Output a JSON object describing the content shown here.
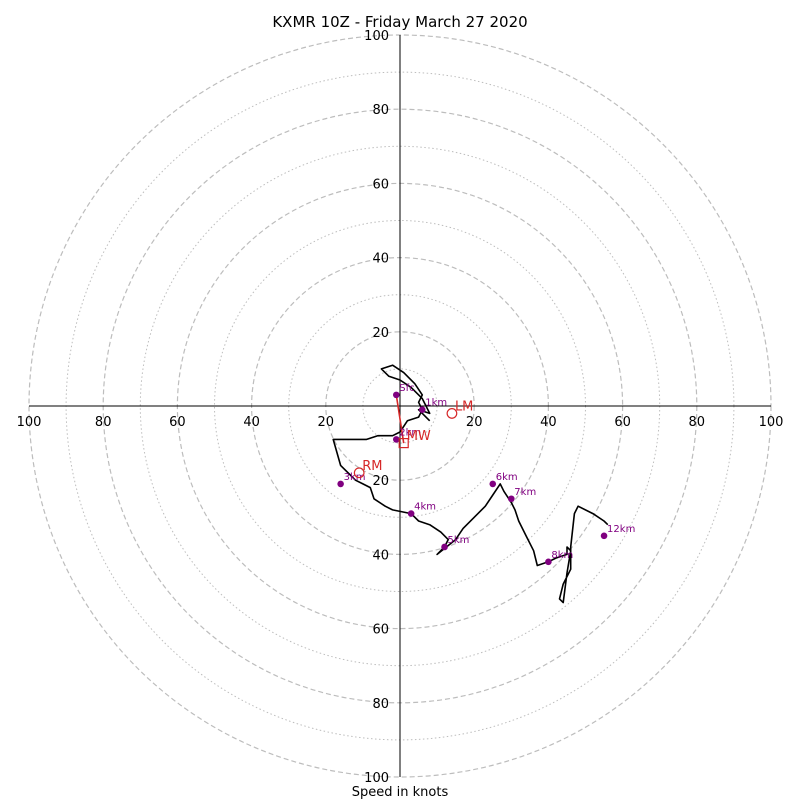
{
  "chart_data": {
    "type": "line",
    "title": "KXMR 10Z - Friday March 27 2020",
    "xlabel": "Speed in knots",
    "range": 100,
    "rings": {
      "dashed": [
        20,
        40,
        60,
        80,
        100
      ],
      "dotted": [
        10,
        30,
        50,
        70,
        90
      ]
    },
    "tick_labels": {
      "left": [
        {
          "value": -100,
          "text": "100"
        },
        {
          "value": -80,
          "text": "80"
        },
        {
          "value": -60,
          "text": "60"
        },
        {
          "value": -40,
          "text": "40"
        },
        {
          "value": -20,
          "text": "20"
        }
      ],
      "right": [
        {
          "value": 20,
          "text": "20"
        },
        {
          "value": 40,
          "text": "40"
        },
        {
          "value": 60,
          "text": "60"
        },
        {
          "value": 80,
          "text": "80"
        },
        {
          "value": 100,
          "text": "100"
        }
      ],
      "top": [
        {
          "value": 20,
          "text": "20"
        },
        {
          "value": 40,
          "text": "40"
        },
        {
          "value": 60,
          "text": "60"
        },
        {
          "value": 80,
          "text": "80"
        },
        {
          "value": 100,
          "text": "100"
        }
      ],
      "bottom": [
        {
          "value": -20,
          "text": "20"
        },
        {
          "value": -40,
          "text": "40"
        },
        {
          "value": -60,
          "text": "60"
        },
        {
          "value": -80,
          "text": "80"
        },
        {
          "value": -100,
          "text": "100"
        }
      ]
    },
    "hodograph": [
      [
        8,
        -4
      ],
      [
        5,
        -1
      ],
      [
        8,
        -2
      ],
      [
        6,
        2
      ],
      [
        3,
        5
      ],
      [
        0,
        7
      ],
      [
        -3,
        8
      ],
      [
        -5,
        10
      ],
      [
        -2,
        11
      ],
      [
        1,
        9
      ],
      [
        4,
        6
      ],
      [
        6,
        3
      ],
      [
        5,
        1
      ],
      [
        6,
        -1
      ],
      [
        5,
        -3
      ],
      [
        2,
        -4
      ],
      [
        0,
        -7
      ],
      [
        -2,
        -8
      ],
      [
        -4,
        -8
      ],
      [
        -6,
        -8
      ],
      [
        -9,
        -9
      ],
      [
        -15,
        -9
      ],
      [
        -18,
        -9
      ],
      [
        -16,
        -16
      ],
      [
        -13,
        -19
      ],
      [
        -12,
        -20
      ],
      [
        -10,
        -21
      ],
      [
        -8,
        -22
      ],
      [
        -7,
        -25
      ],
      [
        -4,
        -27
      ],
      [
        -2,
        -28
      ],
      [
        3,
        -29
      ],
      [
        5,
        -31
      ],
      [
        8,
        -32
      ],
      [
        11,
        -34
      ],
      [
        13,
        -36
      ],
      [
        12,
        -38
      ],
      [
        10,
        -40
      ],
      [
        10,
        -40
      ],
      [
        15,
        -36
      ],
      [
        17,
        -33
      ],
      [
        20,
        -30
      ],
      [
        23,
        -27
      ],
      [
        25,
        -24
      ],
      [
        27,
        -21
      ],
      [
        28,
        -23
      ],
      [
        30,
        -26
      ],
      [
        31,
        -28
      ],
      [
        32,
        -31
      ],
      [
        34,
        -35
      ],
      [
        36,
        -39
      ],
      [
        37,
        -43
      ],
      [
        40,
        -42
      ],
      [
        42,
        -41
      ],
      [
        45,
        -40
      ],
      [
        45,
        -38
      ],
      [
        46,
        -39
      ],
      [
        45,
        -45
      ],
      [
        44,
        -53
      ],
      [
        43,
        -52
      ],
      [
        44,
        -48
      ],
      [
        46,
        -44
      ],
      [
        46,
        -38
      ],
      [
        47,
        -29
      ],
      [
        48,
        -27
      ],
      [
        52,
        -29
      ],
      [
        55,
        -31
      ],
      [
        56,
        -32
      ]
    ],
    "height_points": [
      {
        "label": "Sfc",
        "u": -1,
        "v": 3
      },
      {
        "label": "1km",
        "u": 6,
        "v": -1
      },
      {
        "label": "2km",
        "u": -1,
        "v": -9
      },
      {
        "label": "3km",
        "u": -16,
        "v": -21
      },
      {
        "label": "4km",
        "u": 3,
        "v": -29
      },
      {
        "label": "5km",
        "u": 12,
        "v": -38
      },
      {
        "label": "6km",
        "u": 25,
        "v": -21
      },
      {
        "label": "7km",
        "u": 30,
        "v": -25
      },
      {
        "label": "8km",
        "u": 40,
        "v": -42
      },
      {
        "label": "12km",
        "u": 55,
        "v": -35
      }
    ],
    "markers": [
      {
        "label": "LM",
        "u": 14,
        "v": -2,
        "shape": "circle"
      },
      {
        "label": "RM",
        "u": -11,
        "v": -18,
        "shape": "circle"
      },
      {
        "label": "MW",
        "u": 1,
        "v": -10,
        "shape": "square"
      }
    ],
    "shear_vector": {
      "from": [
        -1,
        3
      ],
      "to": [
        1,
        -10
      ]
    },
    "colors": {
      "hodograph": "#000000",
      "height_points": "#800080",
      "markers": "#d62728",
      "grid": "#bdbdbd",
      "axes": "#000000"
    }
  }
}
